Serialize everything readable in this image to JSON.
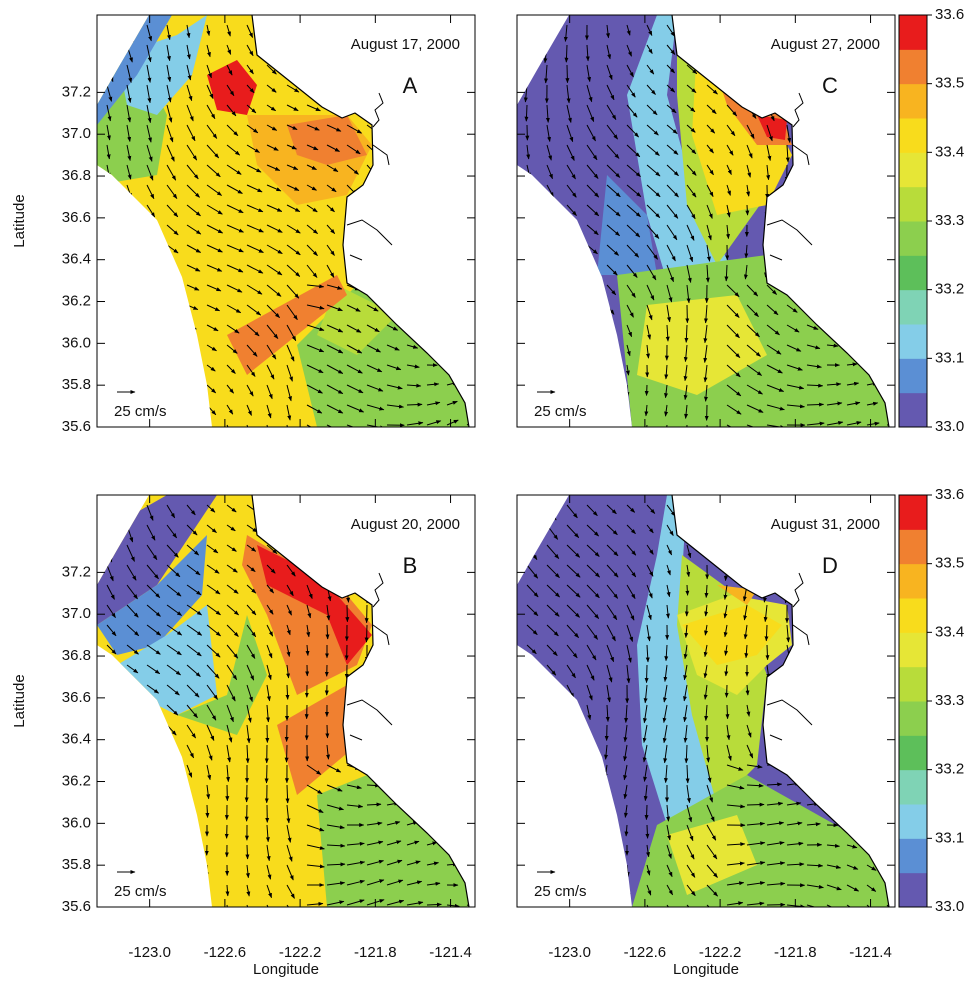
{
  "panels": [
    {
      "letter": "A",
      "date": "August 17, 2000",
      "scale": "25 cm/s"
    },
    {
      "letter": "C",
      "date": "August 27, 2000",
      "scale": "25 cm/s"
    },
    {
      "letter": "B",
      "date": "August 20, 2000",
      "scale": "25 cm/s"
    },
    {
      "letter": "D",
      "date": "August 31, 2000",
      "scale": "25 cm/s"
    }
  ],
  "axes": {
    "x_label": "Longitude",
    "y_label": "Latitude",
    "xlim": [
      -123.28,
      -121.27
    ],
    "ylim": [
      35.6,
      37.57
    ],
    "xticks": [
      {
        "value": -123,
        "label": "-123.0"
      },
      -122.6,
      -122.2,
      -121.8,
      -121.4
    ],
    "yticks": [
      35.6,
      35.8,
      {
        "value": 36,
        "label": "36.0"
      },
      36.2,
      36.4,
      36.6,
      36.8,
      {
        "value": 37,
        "label": "37.0"
      },
      37.2
    ]
  },
  "colorbar": {
    "lim": [
      33,
      33.6
    ],
    "colors": [
      "#6459b0",
      "#5b8fd4",
      "#84cde8",
      "#7fd3b5",
      "#5dbf5a",
      "#8ccf4e",
      "#b8dc3a",
      "#e6e636",
      "#f8dc1c",
      "#f8b420",
      "#f08030",
      "#e81c1c"
    ],
    "ticks": [
      {
        "value": 33,
        "label": "33.0"
      },
      33.1,
      33.2,
      33.3,
      33.4,
      33.5,
      33.6
    ]
  }
}
